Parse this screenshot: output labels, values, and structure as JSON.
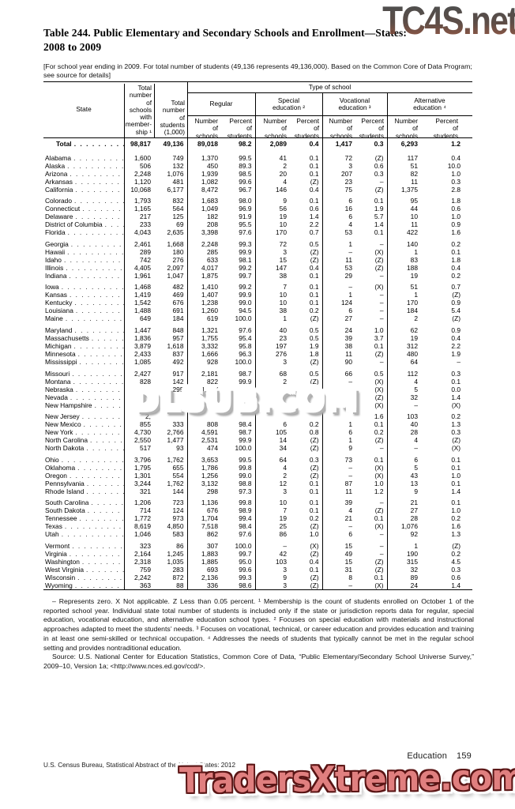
{
  "watermarks": {
    "top": "TC4S.net",
    "middle": "DLSUB.COM",
    "bottom": "TradersXtreme.com"
  },
  "title": {
    "line1": "Table 244. Public Elementary and Secondary Schools and Enrollment—States:",
    "line2": "2008 to 2009"
  },
  "note": "[For school year ending in 2009. For total number of students (49,136 represents 49,136,000). Based on the Common Core of Data Program; see source for details]",
  "table": {
    "spanner": "Type of school",
    "col_state": "State",
    "col_total_schools": "Total\nnumber\nof\nschools\nwith\nmember-\nship ¹",
    "col_total_students": "Total\nnumber\nof\nstudents\n(1,000)",
    "groups": [
      "Regular",
      "Special\neducation ²",
      "Vocational\neducation ³",
      "Alternative\neducation ⁴"
    ],
    "sub_number": "Number\nof\nschools",
    "sub_percent": "Percent\nof\nstudents",
    "total_row": {
      "state": "Total",
      "v": [
        "98,817",
        "49,136",
        "89,018",
        "98.2",
        "2,089",
        "0.4",
        "1,417",
        "0.3",
        "6,293",
        "1.2"
      ]
    },
    "row_groups": [
      [
        {
          "state": "Alabama",
          "v": [
            "1,600",
            "749",
            "1,370",
            "99.5",
            "41",
            "0.1",
            "72",
            "(Z)",
            "117",
            "0.4"
          ]
        },
        {
          "state": "Alaska",
          "v": [
            "506",
            "132",
            "450",
            "89.3",
            "2",
            "0.1",
            "3",
            "0.6",
            "51",
            "10.0"
          ]
        },
        {
          "state": "Arizona",
          "v": [
            "2,248",
            "1,076",
            "1,939",
            "98.5",
            "20",
            "0.1",
            "207",
            "0.3",
            "82",
            "1.0"
          ]
        },
        {
          "state": "Arkansas",
          "v": [
            "1,120",
            "481",
            "1,082",
            "99.6",
            "4",
            "(Z)",
            "23",
            "–",
            "11",
            "0.3"
          ]
        },
        {
          "state": "California",
          "v": [
            "10,068",
            "6,177",
            "8,472",
            "96.7",
            "146",
            "0.4",
            "75",
            "(Z)",
            "1,375",
            "2.8"
          ]
        }
      ],
      [
        {
          "state": "Colorado",
          "v": [
            "1,793",
            "832",
            "1,683",
            "98.0",
            "9",
            "0.1",
            "6",
            "0.1",
            "95",
            "1.8"
          ]
        },
        {
          "state": "Connecticut",
          "v": [
            "1,165",
            "564",
            "1,049",
            "96.9",
            "56",
            "0.6",
            "16",
            "1.9",
            "44",
            "0.6"
          ]
        },
        {
          "state": "Delaware",
          "v": [
            "217",
            "125",
            "182",
            "91.9",
            "19",
            "1.4",
            "6",
            "5.7",
            "10",
            "1.0"
          ]
        },
        {
          "state": "District of Columbia",
          "v": [
            "233",
            "69",
            "208",
            "95.5",
            "10",
            "2.2",
            "4",
            "1.4",
            "11",
            "0.9"
          ]
        },
        {
          "state": "Florida",
          "v": [
            "4,043",
            "2,635",
            "3,398",
            "97.6",
            "170",
            "0.7",
            "53",
            "0.1",
            "422",
            "1.6"
          ]
        }
      ],
      [
        {
          "state": "Georgia",
          "v": [
            "2,461",
            "1,668",
            "2,248",
            "99.3",
            "72",
            "0.5",
            "1",
            "–",
            "140",
            "0.2"
          ]
        },
        {
          "state": "Hawaii",
          "v": [
            "289",
            "180",
            "285",
            "99.9",
            "3",
            "(Z)",
            "–",
            "(X)",
            "1",
            "0.1"
          ]
        },
        {
          "state": "Idaho",
          "v": [
            "742",
            "276",
            "633",
            "98.1",
            "15",
            "(Z)",
            "11",
            "(Z)",
            "83",
            "1.8"
          ]
        },
        {
          "state": "Illinois",
          "v": [
            "4,405",
            "2,097",
            "4,017",
            "99.2",
            "147",
            "0.4",
            "53",
            "(Z)",
            "188",
            "0.4"
          ]
        },
        {
          "state": "Indiana",
          "v": [
            "1,961",
            "1,047",
            "1,875",
            "99.7",
            "38",
            "0.1",
            "29",
            "–",
            "19",
            "0.2"
          ]
        }
      ],
      [
        {
          "state": "Iowa",
          "v": [
            "1,468",
            "482",
            "1,410",
            "99.2",
            "7",
            "0.1",
            "–",
            "(X)",
            "51",
            "0.7"
          ]
        },
        {
          "state": "Kansas",
          "v": [
            "1,419",
            "469",
            "1,407",
            "99.9",
            "10",
            "0.1",
            "1",
            "–",
            "1",
            "(Z)"
          ]
        },
        {
          "state": "Kentucky",
          "v": [
            "1,542",
            "676",
            "1,238",
            "99.0",
            "10",
            "0.1",
            "124",
            "–",
            "170",
            "0.9"
          ]
        },
        {
          "state": "Louisiana",
          "v": [
            "1,488",
            "691",
            "1,260",
            "94.5",
            "38",
            "0.2",
            "6",
            "–",
            "184",
            "5.4"
          ]
        },
        {
          "state": "Maine",
          "v": [
            "649",
            "184",
            "619",
            "100.0",
            "1",
            "(Z)",
            "27",
            "–",
            "2",
            "(Z)"
          ]
        }
      ],
      [
        {
          "state": "Maryland",
          "v": [
            "1,447",
            "848",
            "1,321",
            "97.6",
            "40",
            "0.5",
            "24",
            "1.0",
            "62",
            "0.9"
          ]
        },
        {
          "state": "Massachusetts",
          "v": [
            "1,836",
            "957",
            "1,755",
            "95.4",
            "23",
            "0.5",
            "39",
            "3.7",
            "19",
            "0.4"
          ]
        },
        {
          "state": "Michigan",
          "v": [
            "3,879",
            "1,618",
            "3,332",
            "95.8",
            "197",
            "1.9",
            "38",
            "0.1",
            "312",
            "2.2"
          ]
        },
        {
          "state": "Minnesota",
          "v": [
            "2,433",
            "837",
            "1,666",
            "96.3",
            "276",
            "1.8",
            "11",
            "(Z)",
            "480",
            "1.9"
          ]
        },
        {
          "state": "Mississippi",
          "v": [
            "1,085",
            "492",
            "928",
            "100.0",
            "3",
            "(Z)",
            "90",
            "–",
            "64",
            "–"
          ]
        }
      ],
      [
        {
          "state": "Missouri",
          "v": [
            "2,427",
            "917",
            "2,181",
            "98.7",
            "68",
            "0.5",
            "66",
            "0.5",
            "112",
            "0.3"
          ]
        },
        {
          "state": "Montana",
          "v": [
            "828",
            "142",
            "822",
            "99.9",
            "2",
            "(Z)",
            "–",
            "(X)",
            "4",
            "0.1"
          ]
        },
        {
          "state": "Nebraska",
          "v": [
            "1,120",
            "295",
            "1,087",
            "99.8",
            "28",
            "0.2",
            "–",
            "(X)",
            "5",
            "0.0"
          ]
        },
        {
          "state": "Nevada",
          "v": [
            "",
            "",
            "",
            "",
            "",
            "",
            "",
            "(Z)",
            "32",
            "1.4"
          ]
        },
        {
          "state": "New Hampshire",
          "v": [
            "4",
            "",
            "",
            "",
            "",
            "",
            "",
            "(X)",
            "–",
            "(X)"
          ]
        }
      ],
      [
        {
          "state": "New Jersey",
          "v": [
            "2,",
            "",
            "",
            "",
            "",
            "",
            "",
            "1.6",
            "103",
            "0.2"
          ]
        },
        {
          "state": "New Mexico",
          "v": [
            "855",
            "333",
            "808",
            "98.4",
            "6",
            "0.2",
            "1",
            "0.1",
            "40",
            "1.3"
          ]
        },
        {
          "state": "New York",
          "v": [
            "4,730",
            "2,766",
            "4,591",
            "98.7",
            "105",
            "0.8",
            "6",
            "0.2",
            "28",
            "0.3"
          ]
        },
        {
          "state": "North Carolina",
          "v": [
            "2,550",
            "1,477",
            "2,531",
            "99.9",
            "14",
            "(Z)",
            "1",
            "(Z)",
            "4",
            "(Z)"
          ]
        },
        {
          "state": "North Dakota",
          "v": [
            "517",
            "93",
            "474",
            "100.0",
            "34",
            "(Z)",
            "9",
            "–",
            "–",
            "(X)"
          ]
        }
      ],
      [
        {
          "state": "Ohio",
          "v": [
            "3,796",
            "1,762",
            "3,653",
            "99.5",
            "64",
            "0.3",
            "73",
            "0.1",
            "6",
            "0.1"
          ]
        },
        {
          "state": "Oklahoma",
          "v": [
            "1,795",
            "655",
            "1,786",
            "99.8",
            "4",
            "(Z)",
            "–",
            "(X)",
            "5",
            "0.1"
          ]
        },
        {
          "state": "Oregon",
          "v": [
            "1,301",
            "554",
            "1,256",
            "99.0",
            "2",
            "(Z)",
            "–",
            "(X)",
            "43",
            "1.0"
          ]
        },
        {
          "state": "Pennsylvania",
          "v": [
            "3,244",
            "1,762",
            "3,132",
            "98.8",
            "12",
            "0.1",
            "87",
            "1.0",
            "13",
            "0.1"
          ]
        },
        {
          "state": "Rhode Island",
          "v": [
            "321",
            "144",
            "298",
            "97.3",
            "3",
            "0.1",
            "11",
            "1.2",
            "9",
            "1.4"
          ]
        }
      ],
      [
        {
          "state": "South Carolina",
          "v": [
            "1,206",
            "723",
            "1,136",
            "99.8",
            "10",
            "0.1",
            "39",
            "–",
            "21",
            "0.1"
          ]
        },
        {
          "state": "South Dakota",
          "v": [
            "714",
            "124",
            "676",
            "98.9",
            "7",
            "0.1",
            "4",
            "(Z)",
            "27",
            "1.0"
          ]
        },
        {
          "state": "Tennessee",
          "v": [
            "1,772",
            "973",
            "1,704",
            "99.4",
            "19",
            "0.2",
            "21",
            "0.1",
            "28",
            "0.2"
          ]
        },
        {
          "state": "Texas",
          "v": [
            "8,619",
            "4,850",
            "7,518",
            "98.4",
            "25",
            "(Z)",
            "–",
            "(X)",
            "1,076",
            "1.6"
          ]
        },
        {
          "state": "Utah",
          "v": [
            "1,046",
            "583",
            "862",
            "97.6",
            "86",
            "1.0",
            "6",
            "–",
            "92",
            "1.3"
          ]
        }
      ],
      [
        {
          "state": "Vermont",
          "v": [
            "323",
            "86",
            "307",
            "100.0",
            "–",
            "(X)",
            "15",
            "–",
            "1",
            "(Z)"
          ]
        },
        {
          "state": "Virginia",
          "v": [
            "2,164",
            "1,245",
            "1,883",
            "99.7",
            "42",
            "(Z)",
            "49",
            "–",
            "190",
            "0.2"
          ]
        },
        {
          "state": "Washington",
          "v": [
            "2,318",
            "1,035",
            "1,885",
            "95.0",
            "103",
            "0.4",
            "15",
            "(Z)",
            "315",
            "4.5"
          ]
        },
        {
          "state": "West Virginia",
          "v": [
            "759",
            "283",
            "693",
            "99.6",
            "3",
            "0.1",
            "31",
            "(Z)",
            "32",
            "0.3"
          ]
        },
        {
          "state": "Wisconsin",
          "v": [
            "2,242",
            "872",
            "2,136",
            "99.3",
            "9",
            "(Z)",
            "8",
            "0.1",
            "89",
            "0.6"
          ]
        },
        {
          "state": "Wyoming",
          "v": [
            "363",
            "88",
            "336",
            "98.6",
            "3",
            "(Z)",
            "–",
            "(X)",
            "24",
            "1.4"
          ]
        }
      ]
    ]
  },
  "footnotes": "– Represents zero. X Not applicable. Z Less than 0.05 percent. ¹ Membership is the count of students enrolled on October 1 of the reported school year. Individual state total number of students is included only if the state or jurisdiction reports data for regular, special education, vocational education, and alternative education school types. ² Focuses on special education with materials and instructional approaches adapted to meet the students’ needs. ³ Focuses on vocational, technical, or career education and provides education and training in at least one semi-skilled or technical occupation. ⁴ Addresses the needs of students that typically cannot be met in the regular school setting and provides nontraditional education.",
  "source": "Source: U.S. National Center for Education Statistics, Common Core of Data, “Public Elementary/Secondary School Universe Survey,” 2009–10, Version 1a; <http://www.nces.ed.gov/ccd/>.",
  "footer": {
    "section": "Education",
    "page_number": "159",
    "census_line": "U.S. Census Bureau, Statistical Abstract of the United States: 2012"
  }
}
